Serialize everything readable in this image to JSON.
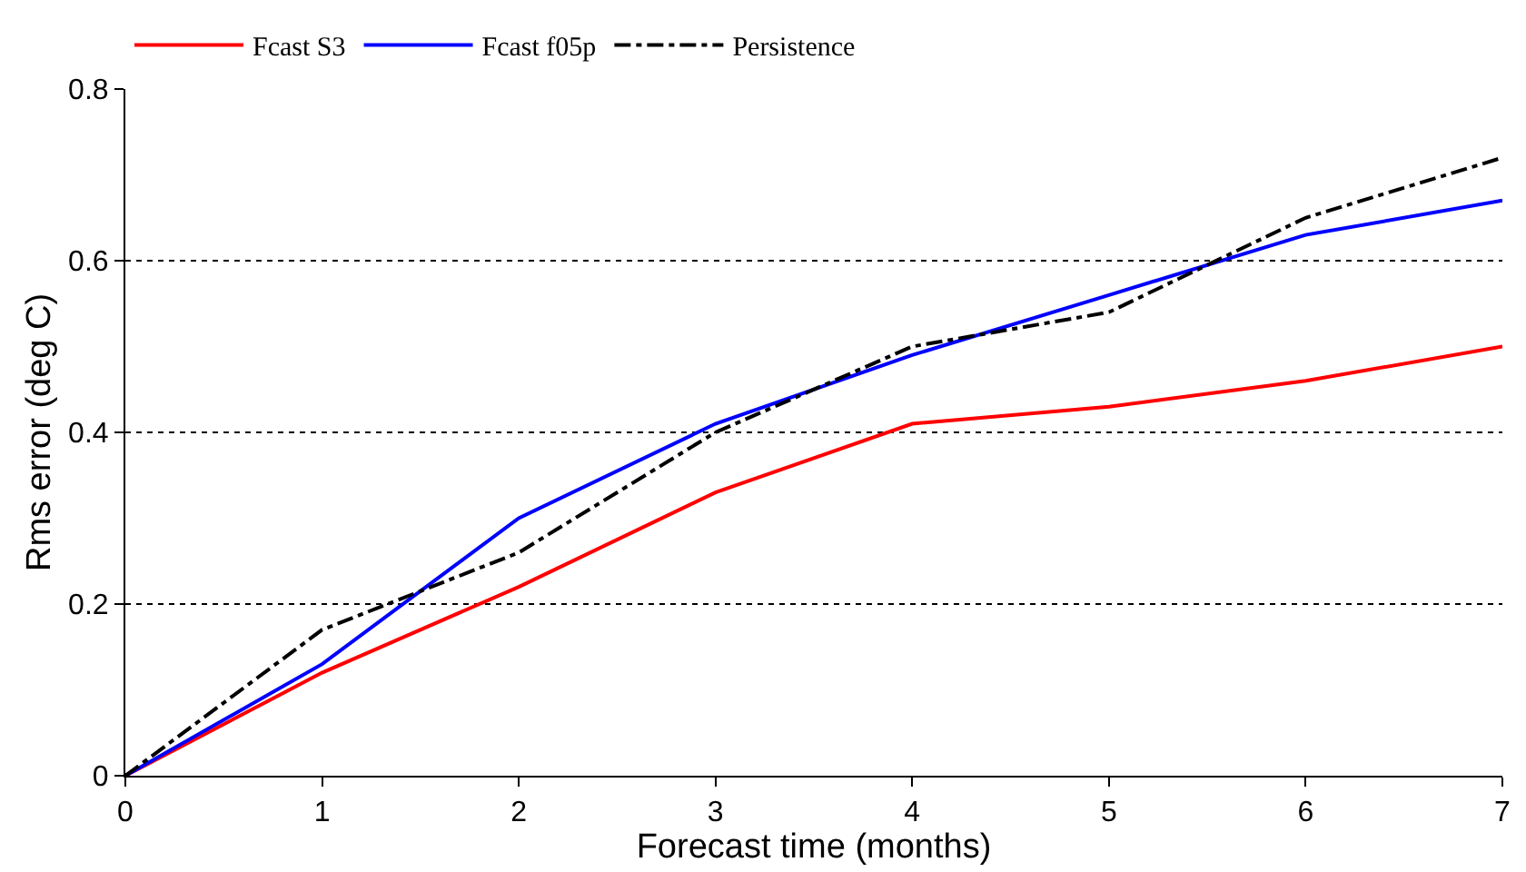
{
  "chart_data": {
    "type": "line",
    "xlabel": "Forecast time (months)",
    "ylabel": "Rms error (deg C)",
    "x": [
      0,
      1,
      2,
      3,
      4,
      5,
      6,
      7
    ],
    "series": [
      {
        "name": "Fcast S3",
        "color": "#ff0000",
        "values": [
          0,
          0.12,
          0.22,
          0.33,
          0.41,
          0.43,
          0.46,
          0.5
        ],
        "line_style": "solid"
      },
      {
        "name": "Fcast f05p",
        "color": "#0000ff",
        "values": [
          0,
          0.13,
          0.3,
          0.41,
          0.49,
          0.56,
          0.63,
          0.67
        ],
        "line_style": "solid"
      },
      {
        "name": "Persistence",
        "color": "#000000",
        "values": [
          0,
          0.17,
          0.26,
          0.4,
          0.5,
          0.54,
          0.65,
          0.72
        ],
        "line_style": "dashdot"
      }
    ],
    "xlim": [
      0,
      7
    ],
    "xticks": [
      0,
      1,
      2,
      3,
      4,
      5,
      6,
      7
    ],
    "ylim": [
      0,
      0.8
    ],
    "yticks": [
      0,
      0.2,
      0.4,
      0.6,
      0.8
    ],
    "grid": "y",
    "legend": "top",
    "marker": "none"
  }
}
